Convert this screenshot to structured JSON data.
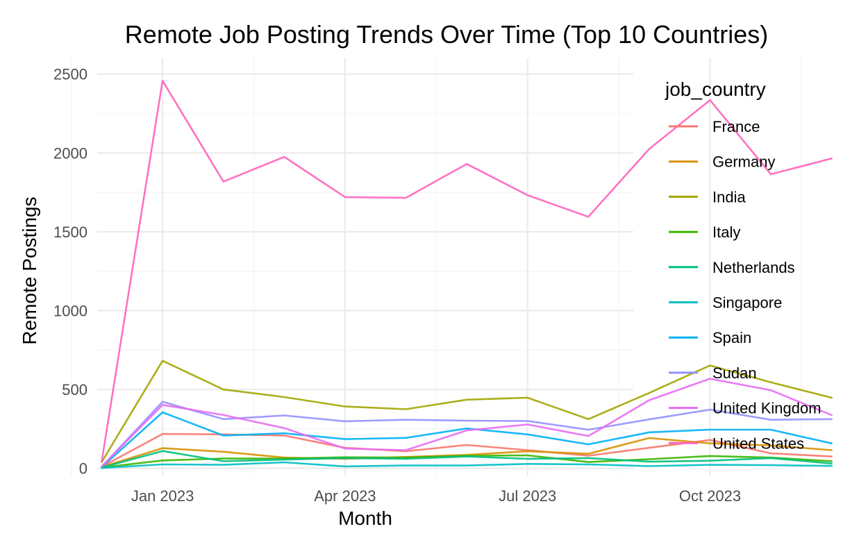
{
  "chart_data": {
    "type": "line",
    "title": "Remote Job Posting Trends Over Time (Top 10 Countries)",
    "xlabel": "Month",
    "ylabel": "Remote Postings",
    "legend_title": "job_country",
    "legend_position": "right",
    "grid": true,
    "x": [
      "2022-12",
      "2023-01",
      "2023-02",
      "2023-03",
      "2023-04",
      "2023-05",
      "2023-06",
      "2023-07",
      "2023-08",
      "2023-09",
      "2023-10",
      "2023-11",
      "2023-12"
    ],
    "x_ticks": [
      {
        "value": "2023-01",
        "label": "Jan 2023"
      },
      {
        "value": "2023-04",
        "label": "Apr 2023"
      },
      {
        "value": "2023-07",
        "label": "Jul 2023"
      },
      {
        "value": "2023-10",
        "label": "Oct 2023"
      }
    ],
    "y_ticks": [
      0,
      500,
      1000,
      1500,
      2000,
      2500
    ],
    "ylim": [
      -50,
      2600
    ],
    "series": [
      {
        "name": "France",
        "color": "#F8766D",
        "values": [
          10,
          218,
          215,
          208,
          130,
          108,
          148,
          115,
          80,
          130,
          180,
          95,
          75
        ]
      },
      {
        "name": "Germany",
        "color": "#D89000",
        "values": [
          8,
          128,
          105,
          68,
          60,
          72,
          85,
          108,
          92,
          192,
          158,
          145,
          115
        ]
      },
      {
        "name": "India",
        "color": "#A3A500",
        "values": [
          40,
          682,
          500,
          452,
          392,
          375,
          435,
          448,
          312,
          478,
          652,
          545,
          448
        ]
      },
      {
        "name": "Italy",
        "color": "#39B600",
        "values": [
          5,
          50,
          62,
          62,
          70,
          68,
          80,
          82,
          40,
          58,
          78,
          68,
          45
        ]
      },
      {
        "name": "Netherlands",
        "color": "#00BF7D",
        "values": [
          5,
          110,
          45,
          55,
          65,
          60,
          75,
          60,
          65,
          42,
          48,
          65,
          30
        ]
      },
      {
        "name": "Singapore",
        "color": "#00BFC4",
        "values": [
          2,
          25,
          22,
          38,
          12,
          18,
          18,
          28,
          25,
          14,
          22,
          20,
          15
        ]
      },
      {
        "name": "Spain",
        "color": "#00B0F6",
        "values": [
          8,
          355,
          208,
          222,
          185,
          193,
          253,
          215,
          152,
          228,
          245,
          245,
          158
        ]
      },
      {
        "name": "Sudan",
        "color": "#9590FF",
        "values": [
          10,
          422,
          312,
          335,
          298,
          308,
          302,
          300,
          245,
          310,
          372,
          308,
          312
        ]
      },
      {
        "name": "United Kingdom",
        "color": "#E76BF3",
        "values": [
          12,
          402,
          338,
          255,
          125,
          115,
          240,
          278,
          205,
          432,
          568,
          495,
          338
        ]
      },
      {
        "name": "United States",
        "color": "#FF62BC",
        "values": [
          45,
          2458,
          1818,
          1975,
          1720,
          1715,
          1930,
          1732,
          1595,
          2025,
          2335,
          1865,
          1965
        ]
      }
    ]
  }
}
